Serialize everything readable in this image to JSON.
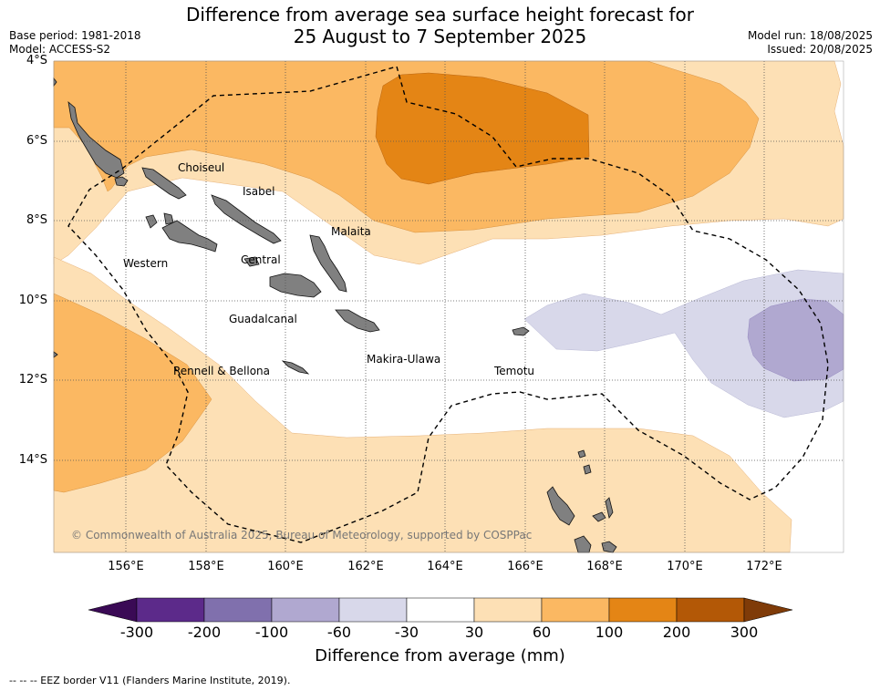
{
  "header": {
    "title_line1": "Difference from average sea surface height forecast for",
    "title_line2": "25 August to 7 September 2025",
    "base_period": "Base period: 1981-2018",
    "model": "Model: ACCESS-S2",
    "model_run": "Model run: 18/08/2025",
    "issued": "Issued: 20/08/2025"
  },
  "map": {
    "lat_labels": [
      "4°S",
      "6°S",
      "8°S",
      "10°S",
      "12°S",
      "14°S"
    ],
    "lon_labels": [
      "156°E",
      "158°E",
      "160°E",
      "162°E",
      "164°E",
      "166°E",
      "168°E",
      "170°E",
      "172°E"
    ],
    "places": {
      "choiseul": "Choiseul",
      "isabel": "Isabel",
      "malaita": "Malaita",
      "western": "Western",
      "central": "Central",
      "guadalcanal": "Guadalcanal",
      "makira": "Makira-Ulawa",
      "rennell": "Rennell & Bellona",
      "temotu": "Temotu"
    },
    "copyright": "© Commonwealth of Australia 2025, Bureau of Meteorology, supported by COSPPac",
    "colors": {
      "c_m300": "#3a0a55",
      "c_m200": "#5c2a8a",
      "c_m100": "#8070ad",
      "c_m60": "#b0a8d0",
      "c_m30": "#d8d8ea",
      "c_0": "#ffffff",
      "c_30": "#fde0b5",
      "c_60": "#fbb862",
      "c_100": "#e48515",
      "c_200": "#b35806",
      "c_300": "#7f3b08",
      "land": "#808080"
    }
  },
  "colorbar": {
    "ticks": [
      "-300",
      "-200",
      "-100",
      "-60",
      "-30",
      "30",
      "60",
      "100",
      "200",
      "300"
    ],
    "title": "Difference from average (mm)"
  },
  "footnote": "--  --  -- EEZ border V11 (Flanders Marine Institute, 2019)."
}
